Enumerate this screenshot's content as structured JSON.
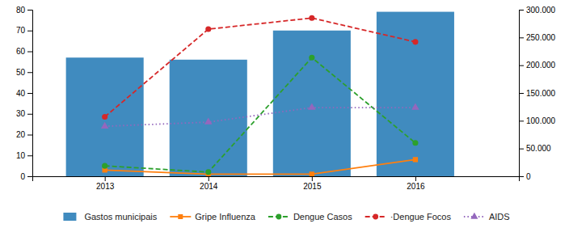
{
  "chart_data": {
    "type": "bar",
    "x": [
      2013,
      2014,
      2015,
      2016
    ],
    "xlim": [
      2012.3,
      2017.0
    ],
    "xticks": [
      2013,
      2014,
      2015,
      2016
    ],
    "ylim": [
      0,
      80
    ],
    "yticks": [
      0,
      10,
      20,
      30,
      40,
      50,
      60,
      70,
      80
    ],
    "y2lim": [
      0,
      300000
    ],
    "y2ticks": [
      0,
      {
        "value": 50000,
        "label": "50.000"
      },
      {
        "value": 100000,
        "label": "100.000"
      },
      {
        "value": 150000,
        "label": "150.000"
      },
      {
        "value": 200000,
        "label": "200.000"
      },
      {
        "value": 250000,
        "label": "250.000"
      },
      {
        "value": 300000,
        "label": "300.000"
      }
    ],
    "grid": false,
    "legend": "bottom",
    "series": [
      {
        "name": "Gastos municipais",
        "type": "bar",
        "values": [
          57,
          56,
          70,
          79
        ]
      },
      {
        "name": "Gripe Influenza",
        "type": "line",
        "marker": "square",
        "line_style": "solid",
        "values": [
          3,
          1,
          1,
          8
        ]
      },
      {
        "name": "Dengue Casos",
        "type": "line",
        "marker": "circle",
        "line_style": "dashed",
        "values": [
          5,
          2,
          57,
          16
        ]
      },
      {
        "name": "·Dengue Focos",
        "type": "line",
        "axis": "y2",
        "marker": "circle",
        "line_style": "dashed",
        "values": [
          107000,
          265000,
          285000,
          242000
        ]
      },
      {
        "name": "AIDS",
        "type": "line",
        "marker": "triangle",
        "line_style": "dotted",
        "values": [
          24,
          26,
          33,
          33
        ]
      }
    ]
  }
}
